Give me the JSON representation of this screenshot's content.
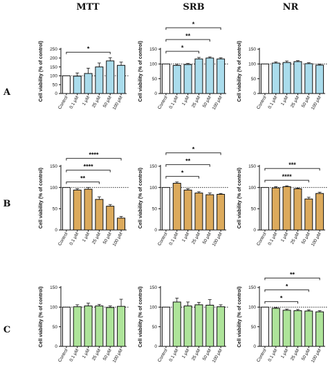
{
  "column_titles": [
    "MTT",
    "SRB",
    "NR"
  ],
  "row_labels": [
    "A",
    "B",
    "C"
  ],
  "colors": {
    "A": "#aadcec",
    "B": "#dcaa5c",
    "C": "#aee49a",
    "control": "#ffffff",
    "stroke": "#111111"
  },
  "chart_data": [
    {
      "type": "bar",
      "row": "A",
      "col": "MTT",
      "title": "",
      "xlabel": "",
      "ylabel": "Cell viability (% of control)",
      "ylim": [
        0,
        250
      ],
      "yticks": [
        0,
        50,
        100,
        150,
        200,
        250
      ],
      "reference_line": 100,
      "categories": [
        "Control",
        "0.1 μM",
        "1 μM",
        "25 μM",
        "50 μM",
        "100 μM"
      ],
      "values": [
        100,
        98,
        113,
        150,
        184,
        159
      ],
      "errors": [
        0,
        18,
        30,
        22,
        18,
        18
      ],
      "significance": [
        {
          "from": 0,
          "to": 4,
          "label": "*"
        }
      ]
    },
    {
      "type": "bar",
      "row": "A",
      "col": "SRB",
      "title": "",
      "xlabel": "",
      "ylabel": "Cell viability (% of control)",
      "ylim": [
        0,
        150
      ],
      "yticks": [
        0,
        50,
        100,
        150
      ],
      "reference_line": 100,
      "categories": [
        "Control",
        "0.1 μM",
        "1 μM",
        "25 μM",
        "50 μM",
        "100 μM"
      ],
      "values": [
        100,
        95,
        98,
        117,
        120,
        117
      ],
      "errors": [
        0,
        4,
        4,
        5,
        4,
        4
      ],
      "significance": [
        {
          "from": 0,
          "to": 3,
          "label": "*"
        },
        {
          "from": 0,
          "to": 4,
          "label": "**"
        },
        {
          "from": 0,
          "to": 5,
          "label": "*"
        }
      ]
    },
    {
      "type": "bar",
      "row": "A",
      "col": "NR",
      "title": "",
      "xlabel": "",
      "ylabel": "Cell viability (% of control)",
      "ylim": [
        0,
        150
      ],
      "yticks": [
        0,
        50,
        100,
        150
      ],
      "reference_line": 100,
      "categories": [
        "Control",
        "0.1 μM",
        "1 μM",
        "25 μM",
        "50 μM",
        "100 μM"
      ],
      "values": [
        100,
        103,
        105,
        108,
        101,
        96
      ],
      "errors": [
        0,
        4,
        5,
        3,
        3,
        3
      ],
      "significance": []
    },
    {
      "type": "bar",
      "row": "B",
      "col": "MTT",
      "title": "",
      "xlabel": "",
      "ylabel": "Cell viability (% of control)",
      "ylim": [
        0,
        150
      ],
      "yticks": [
        0,
        50,
        100,
        150
      ],
      "reference_line": 100,
      "categories": [
        "Control",
        "0.1 μM",
        "1 μM",
        "25 μM",
        "50 μM",
        "100 μM"
      ],
      "values": [
        100,
        94,
        96,
        72,
        56,
        28
      ],
      "errors": [
        0,
        3,
        4,
        6,
        4,
        4
      ],
      "significance": [
        {
          "from": 0,
          "to": 3,
          "label": "**"
        },
        {
          "from": 0,
          "to": 4,
          "label": "****"
        },
        {
          "from": 0,
          "to": 5,
          "label": "****"
        }
      ]
    },
    {
      "type": "bar",
      "row": "B",
      "col": "SRB",
      "title": "",
      "xlabel": "",
      "ylabel": "Cell viability (% of control)",
      "ylim": [
        0,
        150
      ],
      "yticks": [
        0,
        50,
        100,
        150
      ],
      "reference_line": 100,
      "categories": [
        "Control",
        "0.1 μM",
        "1 μM",
        "25 μM",
        "50 μM",
        "100 μM"
      ],
      "values": [
        100,
        110,
        94,
        87,
        83,
        84
      ],
      "errors": [
        0,
        3,
        3,
        3,
        4,
        2
      ],
      "significance": [
        {
          "from": 0,
          "to": 3,
          "label": "*"
        },
        {
          "from": 0,
          "to": 4,
          "label": "**"
        },
        {
          "from": 0,
          "to": 5,
          "label": "*"
        }
      ]
    },
    {
      "type": "bar",
      "row": "B",
      "col": "NR",
      "title": "",
      "xlabel": "",
      "ylabel": "Cell viability (% of control)",
      "ylim": [
        0,
        150
      ],
      "yticks": [
        0,
        50,
        100,
        150
      ],
      "reference_line": 100,
      "categories": [
        "Control",
        "0.1 μM",
        "1 μM",
        "25 μM",
        "50 μM",
        "100 μM"
      ],
      "values": [
        100,
        99,
        102,
        97,
        73,
        86
      ],
      "errors": [
        0,
        3,
        2,
        2,
        4,
        3
      ],
      "significance": [
        {
          "from": 0,
          "to": 4,
          "label": "****"
        },
        {
          "from": 0,
          "to": 5,
          "label": "***"
        }
      ]
    },
    {
      "type": "bar",
      "row": "C",
      "col": "MTT",
      "title": "",
      "xlabel": "",
      "ylabel": "Cell viability (% of control)",
      "ylim": [
        0,
        150
      ],
      "yticks": [
        0,
        50,
        100,
        150
      ],
      "reference_line": 100,
      "categories": [
        "Control",
        "0.1 μM",
        "1 μM",
        "25 μM",
        "50 μM",
        "100 μM"
      ],
      "values": [
        100,
        101,
        103,
        103,
        99,
        102
      ],
      "errors": [
        0,
        5,
        7,
        4,
        4,
        18
      ],
      "significance": []
    },
    {
      "type": "bar",
      "row": "C",
      "col": "SRB",
      "title": "",
      "xlabel": "",
      "ylabel": "Cell viability (% of control)",
      "ylim": [
        0,
        150
      ],
      "yticks": [
        0,
        50,
        100,
        150
      ],
      "reference_line": 100,
      "categories": [
        "Control",
        "0.1 μM",
        "1 μM",
        "25 μM",
        "50 μM",
        "100 μM"
      ],
      "values": [
        100,
        113,
        103,
        106,
        105,
        101
      ],
      "errors": [
        0,
        10,
        10,
        6,
        14,
        5
      ],
      "significance": []
    },
    {
      "type": "bar",
      "row": "C",
      "col": "NR",
      "title": "",
      "xlabel": "",
      "ylabel": "Cell viability (% of control)",
      "ylim": [
        0,
        150
      ],
      "yticks": [
        0,
        50,
        100,
        150
      ],
      "reference_line": 100,
      "categories": [
        "Control",
        "0.1 μM",
        "1 μM",
        "25 μM",
        "50 μM",
        "100 μM"
      ],
      "values": [
        100,
        97,
        92,
        91,
        90,
        88
      ],
      "errors": [
        0,
        2,
        3,
        3,
        3,
        3
      ],
      "significance": [
        {
          "from": 0,
          "to": 3,
          "label": "*"
        },
        {
          "from": 0,
          "to": 4,
          "label": "*"
        },
        {
          "from": 0,
          "to": 5,
          "label": "**"
        }
      ]
    }
  ]
}
